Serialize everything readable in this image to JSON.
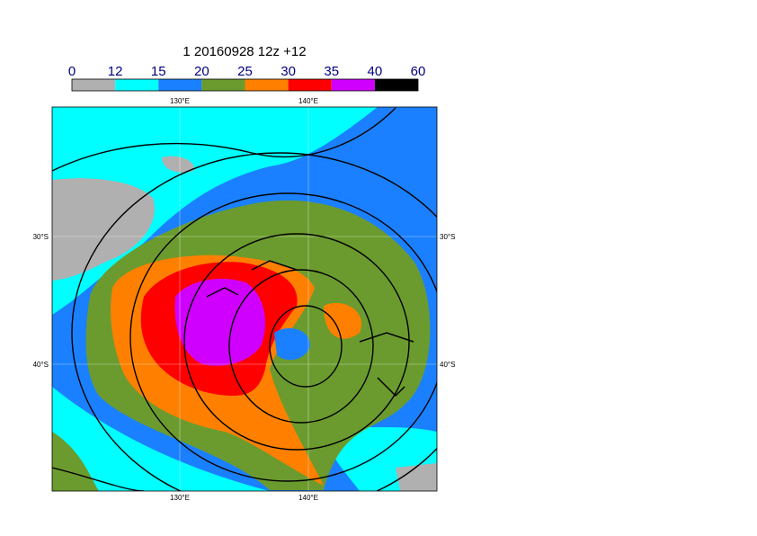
{
  "title": "1 20160928 12z +12",
  "colorbar": {
    "labels": [
      "0",
      "12",
      "15",
      "20",
      "25",
      "30",
      "35",
      "40",
      "60"
    ],
    "colors": [
      "#b0b0b0",
      "#00ffff",
      "#1a80ff",
      "#6b9b2e",
      "#ff8000",
      "#ff0000",
      "#d000ff",
      "#000000"
    ]
  },
  "axes": {
    "top": [
      "130°E",
      "140°E"
    ],
    "bottom": [
      "130°E",
      "140°E"
    ],
    "left": [
      "30°S",
      "40°S"
    ],
    "right": [
      "30°S",
      "40°S"
    ]
  }
}
